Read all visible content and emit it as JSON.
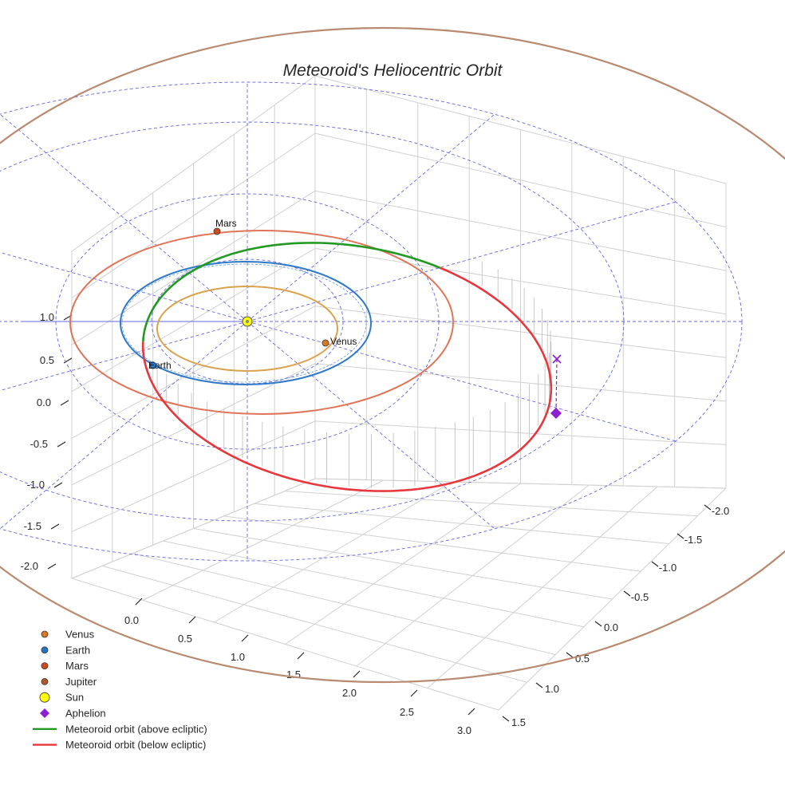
{
  "chart_data": {
    "type": "line",
    "projection": "3d",
    "title": "Meteoroid's Heliocentric Orbit",
    "xlabel": "",
    "ylabel": "",
    "zlabel": "",
    "axis_x_ticks": [
      "0.0",
      "0.5",
      "1.0",
      "1.5",
      "2.0",
      "2.5",
      "3.0"
    ],
    "axis_y_ticks": [
      "-2.0",
      "-1.5",
      "-1.0",
      "-0.5",
      "0.0",
      "0.5",
      "1.0",
      "1.5"
    ],
    "axis_z_ticks": [
      "1.0",
      "0.5",
      "0.0",
      "-0.5",
      "-1.0",
      "-1.5",
      "-2.0"
    ],
    "grid": true,
    "ecliptic_reference_grid": true,
    "legend_position": "bottom-left",
    "legend": [
      {
        "label": "Venus",
        "marker": "circle",
        "color": "#d97a1f"
      },
      {
        "label": "Earth",
        "marker": "circle",
        "color": "#2277c4"
      },
      {
        "label": "Mars",
        "marker": "circle",
        "color": "#cf4a1c"
      },
      {
        "label": "Jupiter",
        "marker": "circle",
        "color": "#b0582a"
      },
      {
        "label": "Sun",
        "marker": "circle",
        "color": "#ffff00"
      },
      {
        "label": "Aphelion",
        "marker": "diamond",
        "color": "#8b1fd1"
      },
      {
        "label": "Meteoroid orbit (above ecliptic)",
        "marker": "line",
        "color": "#229922"
      },
      {
        "label": "Meteoroid orbit (below ecliptic)",
        "marker": "line",
        "color": "#e8373c"
      }
    ],
    "planets": [
      {
        "name": "Venus",
        "orbit_radius_au": 0.72,
        "label_shown": true,
        "orbit_color": "#d9a24e"
      },
      {
        "name": "Earth",
        "orbit_radius_au": 1.0,
        "label_shown": true,
        "orbit_color": "#2f78c9"
      },
      {
        "name": "Mars",
        "orbit_radius_au": 1.52,
        "label_shown": true,
        "orbit_color": "#e07458"
      },
      {
        "name": "Jupiter",
        "orbit_radius_au": 5.2,
        "label_shown": false,
        "orbit_color": "#b98a70"
      }
    ],
    "meteoroid_orbit": {
      "perihelion_au": 0.98,
      "aphelion_au": 2.6,
      "segments": [
        {
          "name": "Meteoroid orbit (above ecliptic)",
          "color": "#229922"
        },
        {
          "name": "Meteoroid orbit (below ecliptic)",
          "color": "#e8373c"
        }
      ]
    },
    "markers": [
      {
        "name": "Aphelion",
        "shape": "diamond",
        "color": "#8b1fd1"
      },
      {
        "name": "projection",
        "shape": "x",
        "color": "#8b1fd1"
      }
    ]
  }
}
